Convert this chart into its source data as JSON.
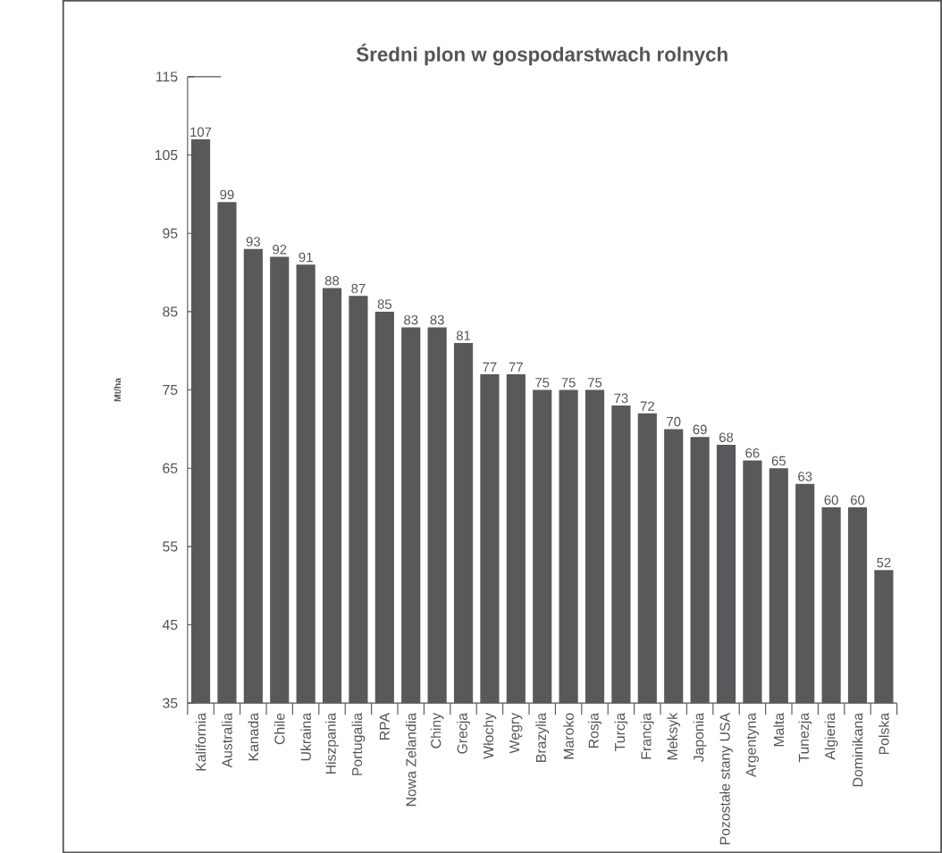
{
  "chart_data": {
    "type": "bar",
    "title": "Średni plon w gospodarstwach rolnych",
    "ylabel": "Mt/ha",
    "categories": [
      "Kalifornia",
      "Australia",
      "Kanada",
      "Chile",
      "Ukraina",
      "Hiszpania",
      "Portugalia",
      "RPA",
      "Nowa Zelandia",
      "Chiny",
      "Grecja",
      "Włochy",
      "Węgry",
      "Brazylia",
      "Maroko",
      "Rosja",
      "Turcja",
      "Francja",
      "Meksyk",
      "Japonia",
      "Pozostałe stany USA",
      "Argentyna",
      "Malta",
      "Tunezja",
      "Algieria",
      "Dominikana",
      "Polska"
    ],
    "values": [
      107,
      99,
      93,
      92,
      91,
      88,
      87,
      85,
      83,
      83,
      81,
      77,
      77,
      75,
      75,
      75,
      73,
      72,
      70,
      69,
      68,
      66,
      65,
      63,
      60,
      60,
      52
    ],
    "color": "#58595b",
    "ylim": [
      35,
      115
    ],
    "yticks": [
      35,
      45,
      55,
      65,
      75,
      85,
      95,
      105,
      115
    ],
    "data_labels": true
  }
}
